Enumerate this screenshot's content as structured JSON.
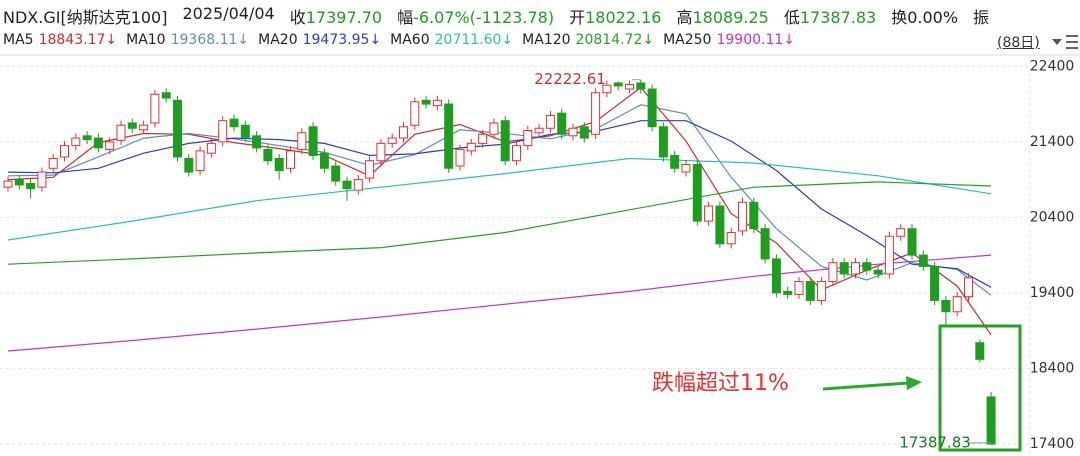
{
  "chart_data": {
    "type": "candlestick",
    "title": "NDX.GI[纳斯达克100]",
    "date": "2025/04/04",
    "quote": [
      {
        "label": "收",
        "text": "17397.70"
      },
      {
        "label": "幅",
        "text": "-6.07%(-1123.78)"
      },
      {
        "label": "开",
        "text": "18022.16"
      },
      {
        "label": "高",
        "text": "18089.25"
      },
      {
        "label": "低",
        "text": "17387.83"
      },
      {
        "label": "换",
        "text": "0.00%"
      },
      {
        "label": "振"
      }
    ],
    "period_label": "(88日)",
    "annotation": "跌幅超过11%",
    "up_color": "#e8312f",
    "down_color": "#1e9e1e",
    "grid": true,
    "ylim": [
      17240,
      22550
    ],
    "yticks": [
      17400,
      18400,
      19400,
      20400,
      21400,
      22400
    ],
    "open": [
      20800,
      20900,
      20850,
      20800,
      21050,
      21200,
      21350,
      21480,
      21450,
      21300,
      21420,
      21650,
      21560,
      21650,
      22050,
      21950,
      21180,
      21020,
      21250,
      21400,
      21700,
      21620,
      21480,
      21300,
      21180,
      21050,
      21300,
      21600,
      21250,
      21080,
      20880,
      20760,
      20920,
      21150,
      21380,
      21450,
      21620,
      21950,
      21880,
      21900,
      21080,
      21280,
      21380,
      21500,
      21680,
      21150,
      21350,
      21520,
      21580,
      21780,
      21480,
      21600,
      21500,
      22050,
      22180,
      22100,
      22180,
      22100,
      21600,
      21220,
      21000,
      21100,
      20350,
      20550,
      20050,
      20220,
      20600,
      20250,
      19850,
      19420,
      19380,
      19550,
      19300,
      19550,
      19800,
      19650,
      19800,
      19700,
      19650,
      20150,
      20250,
      19900,
      19750,
      19300,
      19150,
      19350,
      18740,
      18022.16
    ],
    "high": [
      20940,
      20960,
      20910,
      21060,
      21240,
      21410,
      21510,
      21540,
      21510,
      21460,
      21680,
      21710,
      21680,
      22090,
      22110,
      22010,
      21240,
      21340,
      21440,
      21740,
      21760,
      21680,
      21540,
      21360,
      21240,
      21340,
      21580,
      21660,
      21310,
      21140,
      20940,
      20960,
      21210,
      21440,
      21510,
      21660,
      21990,
      22010,
      22010,
      21960,
      21360,
      21440,
      21560,
      21710,
      21740,
      21410,
      21610,
      21640,
      21810,
      21840,
      21640,
      21660,
      22110,
      22210,
      22200,
      22210,
      22222.61,
      22160,
      21660,
      21280,
      21160,
      21160,
      20610,
      20610,
      20260,
      20660,
      20660,
      20310,
      19910,
      19480,
      19610,
      19610,
      19610,
      19860,
      19860,
      19860,
      19860,
      19760,
      20210,
      20310,
      20310,
      19960,
      19810,
      19360,
      19410,
      19660,
      18780,
      18089.25
    ],
    "low": [
      20740,
      20770,
      20650,
      20740,
      20990,
      21140,
      21290,
      21370,
      21260,
      21240,
      21360,
      21520,
      21500,
      21590,
      21920,
      21140,
      20940,
      20960,
      21190,
      21340,
      21540,
      21400,
      21260,
      21090,
      20900,
      20990,
      21240,
      21160,
      20990,
      20820,
      20620,
      20700,
      20860,
      21090,
      21320,
      21390,
      21560,
      21840,
      21820,
      20990,
      21020,
      21220,
      21320,
      21440,
      21090,
      21090,
      21290,
      21460,
      21520,
      21440,
      21420,
      21390,
      21440,
      21990,
      22080,
      22040,
      22040,
      21540,
      21140,
      20990,
      20940,
      20290,
      20290,
      19990,
      19990,
      20160,
      20190,
      19790,
      19340,
      19320,
      19320,
      19240,
      19240,
      19490,
      19590,
      19590,
      19640,
      19590,
      19590,
      20090,
      19840,
      19690,
      19240,
      18950,
      19090,
      19290,
      18480,
      17387.83
    ],
    "close": [
      20880,
      20830,
      20780,
      21000,
      21180,
      21350,
      21450,
      21430,
      21320,
      21400,
      21620,
      21580,
      21620,
      22030,
      21980,
      21200,
      21000,
      21280,
      21380,
      21680,
      21600,
      21460,
      21320,
      21150,
      21020,
      21280,
      21520,
      21220,
      21050,
      20880,
      20780,
      20900,
      21150,
      21380,
      21450,
      21600,
      21930,
      21900,
      21950,
      21050,
      21300,
      21380,
      21500,
      21650,
      21150,
      21350,
      21550,
      21580,
      21750,
      21500,
      21580,
      21450,
      22050,
      22150,
      22140,
      22160,
      22100,
      21600,
      21200,
      21050,
      21100,
      20350,
      20550,
      20050,
      20200,
      20600,
      20250,
      19850,
      19400,
      19380,
      19550,
      19300,
      19550,
      19800,
      19650,
      19800,
      19700,
      19650,
      20150,
      20250,
      19900,
      19750,
      19300,
      19150,
      19350,
      19600,
      18520,
      17397.7
    ],
    "series": [
      {
        "name": "MA5",
        "legend_label": "18843.17↓",
        "color": "#c8302c",
        "x": [
          0,
          4,
          8,
          12,
          16,
          20,
          24,
          28,
          32,
          36,
          40,
          44,
          48,
          52,
          56,
          60,
          64,
          68,
          72,
          76,
          80,
          84,
          87
        ],
        "values": [
          20900,
          20930,
          21390,
          21510,
          21500,
          21390,
          21310,
          21220,
          20950,
          21500,
          21630,
          21400,
          21480,
          21670,
          22120,
          21410,
          20450,
          20060,
          19440,
          19700,
          19930,
          19490,
          18843.17
        ]
      },
      {
        "name": "MA10",
        "legend_label": "19368.11↓",
        "color": "#5b8ec6",
        "x": [
          0,
          4,
          8,
          12,
          16,
          20,
          24,
          28,
          32,
          36,
          40,
          44,
          48,
          52,
          56,
          60,
          64,
          68,
          72,
          76,
          80,
          84,
          87
        ],
        "values": [
          20950,
          20960,
          21200,
          21450,
          21510,
          21440,
          21350,
          21260,
          21090,
          21230,
          21560,
          21510,
          21440,
          21570,
          21890,
          21770,
          20930,
          20250,
          19750,
          19570,
          19800,
          19710,
          19368.11
        ]
      },
      {
        "name": "MA20",
        "legend_label": "19473.95↓",
        "color": "#2a3fc4",
        "x": [
          0,
          4,
          8,
          12,
          16,
          20,
          24,
          28,
          32,
          36,
          40,
          44,
          48,
          52,
          56,
          60,
          64,
          68,
          72,
          76,
          80,
          84,
          87
        ],
        "values": [
          21000,
          20990,
          21050,
          21250,
          21380,
          21450,
          21430,
          21380,
          21220,
          21240,
          21320,
          21370,
          21500,
          21540,
          21680,
          21680,
          21410,
          21020,
          20510,
          20160,
          19780,
          19720,
          19473.95
        ]
      },
      {
        "name": "MA60",
        "legend_label": "20711.60↓",
        "color": "#2fb8cc",
        "x": [
          0,
          11,
          22,
          33,
          44,
          55,
          66,
          77,
          87
        ],
        "values": [
          20100,
          20350,
          20620,
          20800,
          20980,
          21180,
          21120,
          20950,
          20711.6
        ]
      },
      {
        "name": "MA120",
        "legend_label": "20814.72↓",
        "color": "#2a9e2a",
        "x": [
          0,
          11,
          22,
          33,
          44,
          55,
          66,
          77,
          87
        ],
        "values": [
          19780,
          19850,
          19930,
          20000,
          20200,
          20500,
          20800,
          20870,
          20814.72
        ]
      },
      {
        "name": "MA250",
        "legend_label": "19900.11↓",
        "color": "#c832c8",
        "x": [
          0,
          11,
          22,
          33,
          44,
          55,
          66,
          77,
          87
        ],
        "values": [
          18630,
          18770,
          18920,
          19080,
          19250,
          19420,
          19620,
          19780,
          19900.11
        ]
      }
    ]
  }
}
